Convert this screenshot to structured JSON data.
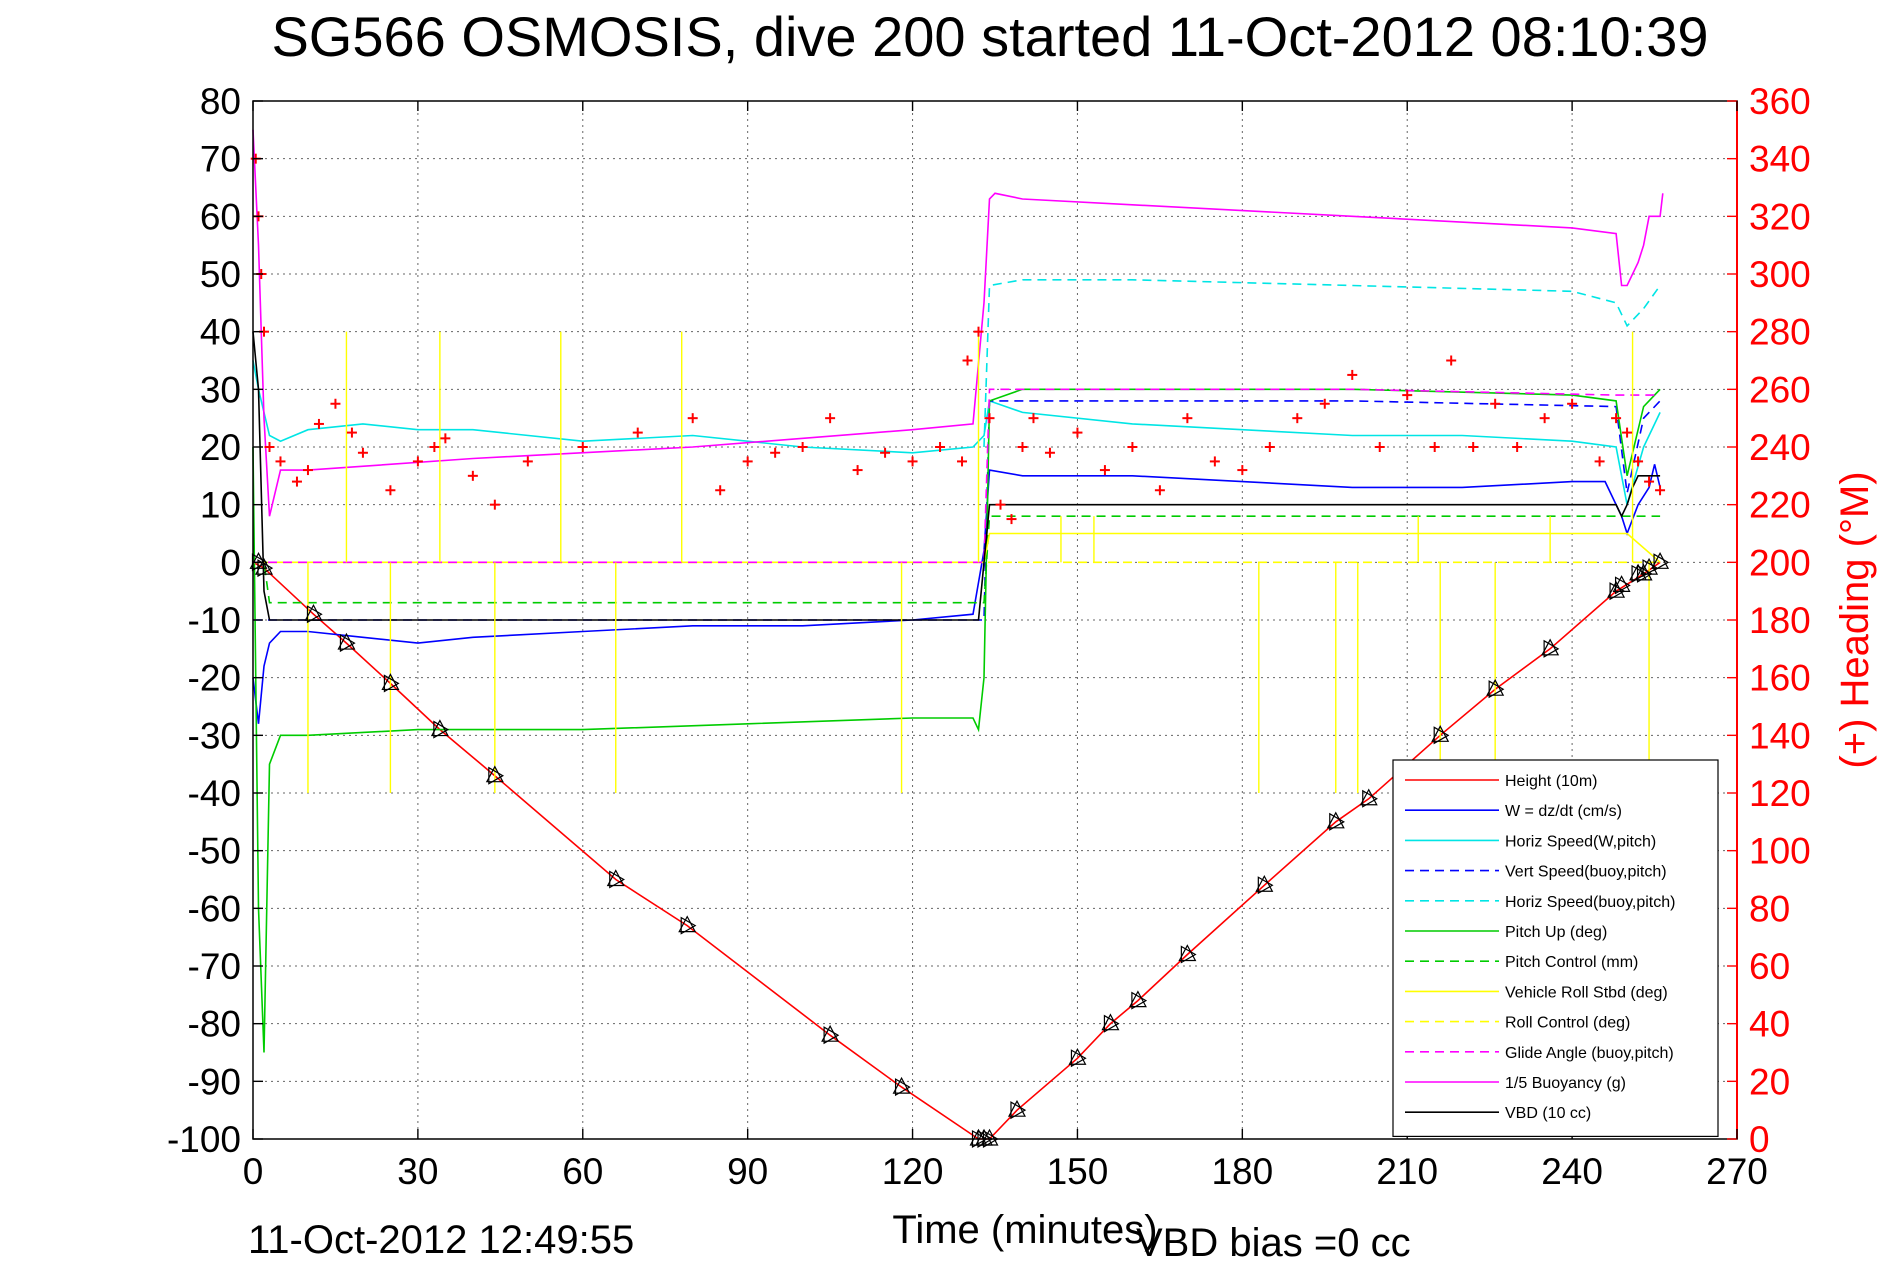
{
  "chart_data": {
    "type": "line",
    "title": "SG566 OSMOSIS, dive 200 started 11-Oct-2012 08:10:39",
    "xlabel": "Time (minutes)",
    "ylabel": "",
    "y2label": "(+) Heading (°M)",
    "xlim": [
      0,
      270
    ],
    "ylim": [
      -100,
      80
    ],
    "y2lim": [
      0,
      360
    ],
    "x_ticks": [
      0,
      30,
      60,
      90,
      120,
      150,
      180,
      210,
      240,
      270
    ],
    "y_ticks": [
      -100,
      -90,
      -80,
      -70,
      -60,
      -50,
      -40,
      -30,
      -20,
      -10,
      0,
      10,
      20,
      30,
      40,
      50,
      60,
      70,
      80
    ],
    "y2_ticks": [
      0,
      20,
      40,
      60,
      80,
      100,
      120,
      140,
      160,
      180,
      200,
      220,
      240,
      260,
      280,
      300,
      320,
      340,
      360
    ],
    "grid": true,
    "legend_position": "bottom-right",
    "series": [
      {
        "name": "Height (10m)",
        "color": "#ff0000",
        "style": "solid",
        "x": [
          0,
          2,
          11,
          17,
          25,
          34,
          44,
          66,
          79,
          105,
          118,
          132,
          134,
          139,
          150,
          156,
          161,
          170,
          184,
          197,
          203,
          216,
          226,
          236,
          248,
          253,
          256
        ],
        "y": [
          0,
          -1,
          -9,
          -14,
          -21,
          -29,
          -37,
          -55,
          -63,
          -82,
          -91,
          -100,
          -100,
          -95,
          -86,
          -80,
          -76,
          -68,
          -56,
          -45,
          -41,
          -30,
          -22,
          -15,
          -5,
          -2,
          0
        ]
      },
      {
        "name": "W = dz/dt (cm/s)",
        "color": "#0000ff",
        "style": "solid",
        "x": [
          0,
          1,
          2,
          3,
          5,
          10,
          20,
          30,
          40,
          60,
          80,
          100,
          120,
          131,
          133,
          134,
          140,
          160,
          180,
          200,
          220,
          240,
          246,
          249,
          250,
          252,
          254,
          255,
          256
        ],
        "y": [
          -20,
          -28,
          -18,
          -14,
          -12,
          -12,
          -13,
          -14,
          -13,
          -12,
          -11,
          -11,
          -10,
          -9,
          2,
          16,
          15,
          15,
          14,
          13,
          13,
          14,
          14,
          8,
          5,
          10,
          13,
          17,
          13
        ]
      },
      {
        "name": "Horiz Speed(W,pitch)",
        "color": "#00e5e5",
        "style": "solid",
        "x": [
          0,
          1,
          3,
          5,
          10,
          20,
          30,
          40,
          60,
          80,
          100,
          120,
          131,
          133,
          134,
          140,
          160,
          180,
          200,
          220,
          240,
          248,
          250,
          253,
          256
        ],
        "y": [
          35,
          30,
          22,
          21,
          23,
          24,
          23,
          23,
          21,
          22,
          20,
          19,
          20,
          22,
          28,
          26,
          24,
          23,
          22,
          22,
          21,
          20,
          10,
          20,
          26
        ]
      },
      {
        "name": "Vert Speed(buoy,pitch)",
        "color": "#0000ff",
        "style": "dashed",
        "x": [
          0,
          2,
          133,
          134,
          140,
          200,
          248,
          250,
          253,
          256
        ],
        "y": [
          -10,
          -10,
          -10,
          28,
          28,
          28,
          27,
          12,
          25,
          28
        ]
      },
      {
        "name": "Horiz Speed(buoy,pitch)",
        "color": "#00e5e5",
        "style": "dashed",
        "x": [
          133,
          134,
          140,
          160,
          200,
          240,
          248,
          250,
          253,
          256
        ],
        "y": [
          20,
          48,
          49,
          49,
          48,
          47,
          45,
          41,
          44,
          48
        ]
      },
      {
        "name": "Pitch Up (deg)",
        "color": "#00cc00",
        "style": "solid",
        "x": [
          0,
          1,
          2,
          3,
          5,
          10,
          30,
          60,
          90,
          120,
          131,
          132,
          133,
          134,
          140,
          160,
          200,
          240,
          248,
          250,
          253,
          256
        ],
        "y": [
          20,
          -60,
          -85,
          -35,
          -30,
          -30,
          -29,
          -29,
          -28,
          -27,
          -27,
          -29,
          -20,
          28,
          30,
          30,
          30,
          29,
          28,
          15,
          27,
          30
        ]
      },
      {
        "name": "Pitch Control (mm)",
        "color": "#00cc00",
        "style": "dashed",
        "x": [
          0,
          2,
          3,
          132,
          133,
          134,
          250,
          256
        ],
        "y": [
          0,
          0,
          -7,
          -7,
          -7,
          8,
          8,
          8
        ]
      },
      {
        "name": "Vehicle Roll Stbd (deg)",
        "color": "#ffff00",
        "style": "solid",
        "x": [
          0,
          2,
          3,
          30,
          60,
          90,
          120,
          132,
          133,
          134,
          180,
          220,
          250,
          256
        ],
        "y": [
          0,
          0,
          0,
          0,
          0,
          0,
          0,
          0,
          0,
          5,
          5,
          5,
          5,
          0
        ]
      },
      {
        "name": "Roll Control (deg)",
        "color": "#ffff00",
        "style": "dashed",
        "x": [
          0,
          2,
          132,
          134,
          256
        ],
        "y": [
          0,
          0,
          0,
          0,
          0
        ]
      },
      {
        "name": "Glide Angle (buoy,pitch)",
        "color": "#ff00ff",
        "style": "dashed",
        "x": [
          0,
          2,
          132,
          133,
          134,
          140,
          200,
          248,
          250,
          256
        ],
        "y": [
          0,
          0,
          0,
          0,
          30,
          30,
          30,
          29,
          29,
          29
        ]
      },
      {
        "name": "1/5 Buoyancy (g)",
        "color": "#ff00ff",
        "style": "solid",
        "x": [
          0,
          1,
          2,
          3,
          5,
          10,
          40,
          80,
          120,
          131,
          133,
          134,
          135,
          140,
          160,
          200,
          240,
          248,
          249,
          250,
          252,
          253,
          254,
          256,
          256.5
        ],
        "y": [
          75,
          55,
          25,
          8,
          16,
          16,
          18,
          20,
          23,
          24,
          45,
          63,
          64,
          63,
          62,
          60,
          58,
          57,
          48,
          48,
          52,
          55,
          60,
          60,
          64
        ]
      },
      {
        "name": "VBD (10 cc)",
        "color": "#000000",
        "style": "solid",
        "x": [
          0,
          1,
          2,
          3,
          5,
          131,
          132,
          133,
          134,
          135,
          200,
          248,
          249,
          250,
          251,
          252,
          254,
          256
        ],
        "y": [
          40,
          30,
          -5,
          -10,
          -10,
          -10,
          -10,
          0,
          10,
          10,
          10,
          10,
          8,
          10,
          13,
          15,
          15,
          15
        ]
      }
    ],
    "heading": {
      "name": "(+) Heading",
      "color": "#ff0000",
      "marker": "+",
      "axis": "right",
      "x": [
        0.5,
        1,
        1.5,
        2,
        3,
        5,
        8,
        10,
        12,
        15,
        18,
        20,
        25,
        30,
        33,
        35,
        40,
        44,
        50,
        60,
        70,
        80,
        85,
        90,
        95,
        100,
        105,
        110,
        115,
        120,
        125,
        129,
        130,
        132,
        134,
        136,
        138,
        140,
        142,
        145,
        150,
        155,
        160,
        165,
        170,
        175,
        180,
        185,
        190,
        195,
        200,
        205,
        210,
        215,
        218,
        222,
        226,
        230,
        235,
        240,
        245,
        248,
        250,
        252,
        254,
        256
      ],
      "y": [
        340,
        320,
        300,
        280,
        240,
        235,
        228,
        232,
        248,
        255,
        245,
        238,
        225,
        235,
        240,
        243,
        230,
        220,
        235,
        240,
        245,
        250,
        225,
        235,
        238,
        240,
        250,
        232,
        238,
        235,
        240,
        235,
        270,
        280,
        250,
        220,
        215,
        240,
        250,
        238,
        245,
        232,
        240,
        225,
        250,
        235,
        232,
        240,
        250,
        255,
        265,
        240,
        258,
        240,
        270,
        240,
        255,
        240,
        250,
        255,
        235,
        250,
        245,
        235,
        228,
        225
      ]
    },
    "depth_markers": {
      "x": [
        1,
        2,
        11,
        17,
        25,
        34,
        44,
        66,
        79,
        105,
        118,
        132,
        133,
        134,
        139,
        150,
        156,
        161,
        170,
        184,
        197,
        203,
        216,
        226,
        236,
        248,
        249,
        252,
        253,
        254,
        256
      ],
      "y": [
        0,
        -1,
        -9,
        -14,
        -21,
        -29,
        -37,
        -55,
        -63,
        -82,
        -91,
        -100,
        -100,
        -100,
        -95,
        -86,
        -80,
        -76,
        -68,
        -56,
        -45,
        -41,
        -30,
        -22,
        -15,
        -5,
        -4,
        -2,
        -2,
        -1,
        0
      ]
    },
    "spikes": {
      "color": "#ffff00",
      "x": [
        10,
        17,
        25,
        34,
        44,
        56,
        66,
        78,
        118,
        132,
        147,
        153,
        183,
        197,
        201,
        212,
        216,
        226,
        236,
        251,
        254
      ],
      "y": [
        -40,
        40,
        -40,
        40,
        -40,
        40,
        -40,
        40,
        -40,
        40,
        8,
        8,
        -40,
        -40,
        -40,
        8,
        -40,
        -40,
        8,
        40,
        -40
      ]
    }
  },
  "footer": {
    "timestamp": "11-Oct-2012 12:49:55",
    "vbd_bias": "VBD bias =0 cc"
  }
}
